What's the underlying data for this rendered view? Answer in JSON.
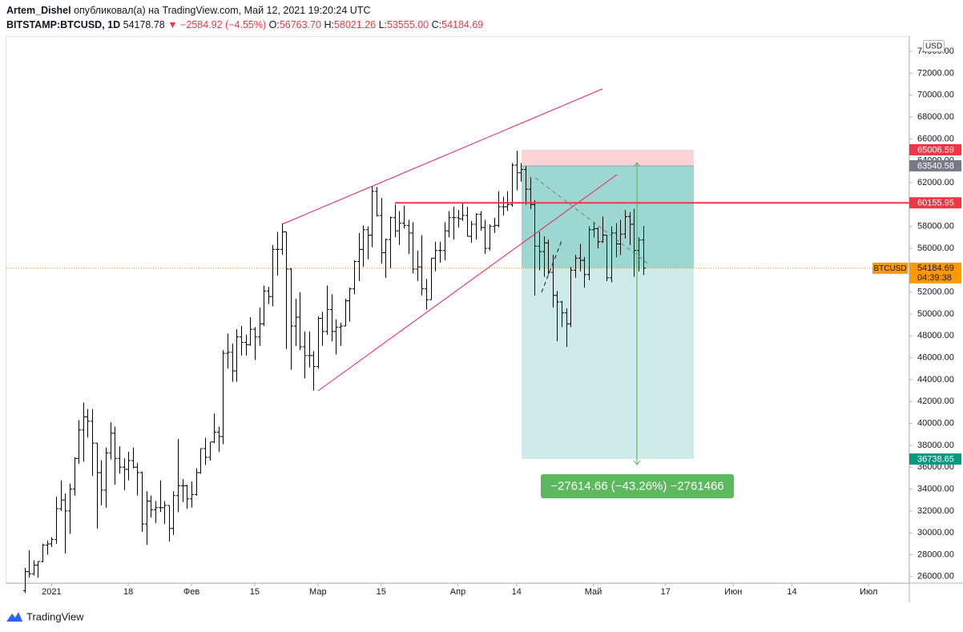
{
  "header": {
    "author": "Artem_Dishel",
    "published": "опубликовал(а) на TradingView.com, Май 12, 2021 19:20:24 UTC",
    "symbol": "BITSTAMP:BTCUSD, 1D",
    "last": "54178.78",
    "change": "▼ −2584.92 (−4.55%)",
    "ohlc": [
      {
        "label": "O:",
        "value": "56763.70"
      },
      {
        "label": "H:",
        "value": "58021.26"
      },
      {
        "label": "L:",
        "value": "53555.00"
      },
      {
        "label": "C:",
        "value": "54184.69"
      }
    ]
  },
  "footer": {
    "brand": "TradingView"
  },
  "chart_data": {
    "type": "ohlc",
    "color": "#000000",
    "grid": false,
    "currency": "USD",
    "x": [
      "2020-12-26",
      "2020-12-27",
      "2020-12-28",
      "2020-12-29",
      "2020-12-30",
      "2020-12-31",
      "2021-01-01",
      "2021-01-02",
      "2021-01-03",
      "2021-01-04",
      "2021-01-05",
      "2021-01-06",
      "2021-01-07",
      "2021-01-08",
      "2021-01-09",
      "2021-01-10",
      "2021-01-11",
      "2021-01-12",
      "2021-01-13",
      "2021-01-14",
      "2021-01-15",
      "2021-01-16",
      "2021-01-17",
      "2021-01-18",
      "2021-01-19",
      "2021-01-20",
      "2021-01-21",
      "2021-01-22",
      "2021-01-23",
      "2021-01-24",
      "2021-01-25",
      "2021-01-26",
      "2021-01-27",
      "2021-01-28",
      "2021-01-29",
      "2021-01-30",
      "2021-01-31",
      "2021-02-01",
      "2021-02-02",
      "2021-02-03",
      "2021-02-04",
      "2021-02-05",
      "2021-02-06",
      "2021-02-07",
      "2021-02-08",
      "2021-02-09",
      "2021-02-10",
      "2021-02-11",
      "2021-02-12",
      "2021-02-13",
      "2021-02-14",
      "2021-02-15",
      "2021-02-16",
      "2021-02-17",
      "2021-02-18",
      "2021-02-19",
      "2021-02-20",
      "2021-02-21",
      "2021-02-22",
      "2021-02-23",
      "2021-02-24",
      "2021-02-25",
      "2021-02-26",
      "2021-02-27",
      "2021-02-28",
      "2021-03-01",
      "2021-03-02",
      "2021-03-03",
      "2021-03-04",
      "2021-03-05",
      "2021-03-06",
      "2021-03-07",
      "2021-03-08",
      "2021-03-09",
      "2021-03-10",
      "2021-03-11",
      "2021-03-12",
      "2021-03-13",
      "2021-03-14",
      "2021-03-15",
      "2021-03-16",
      "2021-03-17",
      "2021-03-18",
      "2021-03-19",
      "2021-03-20",
      "2021-03-21",
      "2021-03-22",
      "2021-03-23",
      "2021-03-24",
      "2021-03-25",
      "2021-03-26",
      "2021-03-27",
      "2021-03-28",
      "2021-03-29",
      "2021-03-30",
      "2021-03-31",
      "2021-04-01",
      "2021-04-02",
      "2021-04-03",
      "2021-04-04",
      "2021-04-05",
      "2021-04-06",
      "2021-04-07",
      "2021-04-08",
      "2021-04-09",
      "2021-04-10",
      "2021-04-11",
      "2021-04-12",
      "2021-04-13",
      "2021-04-14",
      "2021-04-15",
      "2021-04-16",
      "2021-04-17",
      "2021-04-18",
      "2021-04-19",
      "2021-04-20",
      "2021-04-21",
      "2021-04-22",
      "2021-04-23",
      "2021-04-24",
      "2021-04-25",
      "2021-04-26",
      "2021-04-27",
      "2021-04-28",
      "2021-04-29",
      "2021-04-30",
      "2021-05-01",
      "2021-05-02",
      "2021-05-03",
      "2021-05-04",
      "2021-05-05",
      "2021-05-06",
      "2021-05-07",
      "2021-05-08",
      "2021-05-09",
      "2021-05-10",
      "2021-05-11",
      "2021-05-12"
    ],
    "open": [
      24700,
      26450,
      26250,
      27050,
      27380,
      28880,
      28990,
      29400,
      32200,
      33000,
      32000,
      34000,
      36800,
      39400,
      40600,
      40200,
      38200,
      35500,
      33900,
      37300,
      39100,
      36800,
      36000,
      35800,
      36600,
      36000,
      35500,
      30800,
      32900,
      32100,
      32300,
      32300,
      32500,
      30400,
      33400,
      34300,
      34300,
      33100,
      33500,
      35500,
      37700,
      36900,
      38300,
      39200,
      38800,
      46400,
      46500,
      44800,
      47900,
      47400,
      47200,
      48600,
      47900,
      49100,
      52100,
      51600,
      55900,
      55900,
      57500,
      54100,
      48900,
      49700,
      47000,
      46200,
      46200,
      45200,
      49600,
      48400,
      50400,
      48400,
      48800,
      48900,
      51200,
      52300,
      54800,
      55900,
      57700,
      57200,
      61200,
      59000,
      55600,
      56800,
      58800,
      57600,
      58300,
      58100,
      57400,
      54100,
      54300,
      52300,
      51300,
      55100,
      55800,
      55800,
      57600,
      58800,
      58800,
      58700,
      59000,
      57100,
      58200,
      59100,
      57900,
      56000,
      58000,
      58100,
      59800,
      59800,
      60000,
      63600,
      62900,
      63200,
      61400,
      60000,
      56200,
      55700,
      56500,
      53800,
      51700,
      51100,
      50100,
      49100,
      54000,
      55100,
      54900,
      53600,
      57700,
      57800,
      56600,
      57200,
      53300,
      57400,
      56400,
      57300,
      58900,
      58200,
      55800,
      56763.7
    ],
    "high": [
      26800,
      28400,
      27500,
      27400,
      29000,
      29300,
      29600,
      33300,
      34800,
      33600,
      34500,
      36900,
      40300,
      41900,
      41300,
      41300,
      38200,
      36600,
      37800,
      40100,
      39700,
      37900,
      36800,
      37400,
      37800,
      36400,
      35600,
      33800,
      33400,
      32900,
      34800,
      32900,
      32500,
      33800,
      38600,
      34900,
      34400,
      34700,
      35900,
      37700,
      38700,
      38300,
      40900,
      39700,
      46700,
      48200,
      47300,
      48600,
      48900,
      48100,
      49700,
      48800,
      50600,
      52600,
      52500,
      56300,
      57500,
      58300,
      57500,
      54200,
      51400,
      52000,
      48400,
      48400,
      46600,
      49800,
      50200,
      52600,
      51800,
      49500,
      49200,
      51400,
      52400,
      54900,
      57400,
      58100,
      58000,
      61700,
      61600,
      60600,
      56900,
      58900,
      60000,
      59400,
      59900,
      58600,
      58400,
      55800,
      57200,
      53200,
      55100,
      56600,
      56600,
      58400,
      59400,
      59800,
      59500,
      60100,
      59800,
      58500,
      59200,
      59400,
      58600,
      58200,
      58800,
      61200,
      60700,
      61200,
      63800,
      64900,
      63800,
      63500,
      62500,
      60400,
      57500,
      57100,
      56800,
      55400,
      52100,
      51200,
      50500,
      54300,
      55400,
      56400,
      55200,
      58000,
      58400,
      57900,
      58900,
      57200,
      58000,
      58300,
      58600,
      59500,
      59300,
      59600,
      57000,
      58021.26
    ],
    "low": [
      24500,
      25900,
      26100,
      25900,
      27300,
      28000,
      28700,
      29000,
      32000,
      28100,
      29900,
      33400,
      36300,
      36500,
      38700,
      35200,
      30400,
      32500,
      32300,
      36700,
      34400,
      35400,
      33900,
      34800,
      35900,
      33400,
      30100,
      28900,
      31400,
      30900,
      31900,
      30800,
      29200,
      29800,
      31900,
      32800,
      32200,
      32300,
      33400,
      35400,
      36200,
      36600,
      38200,
      37400,
      38100,
      45000,
      43800,
      43800,
      46200,
      46200,
      47100,
      45800,
      47100,
      48900,
      50900,
      50700,
      53500,
      55400,
      46800,
      44900,
      47100,
      46700,
      44100,
      45100,
      43000,
      45000,
      47100,
      48100,
      47500,
      46300,
      47100,
      48900,
      49300,
      51800,
      53000,
      54300,
      55000,
      56100,
      58900,
      54600,
      53300,
      54200,
      57000,
      56300,
      57800,
      55500,
      53700,
      53000,
      51700,
      50400,
      51300,
      53900,
      54700,
      54900,
      57000,
      56800,
      57900,
      58500,
      57100,
      56500,
      56800,
      57600,
      55500,
      55800,
      57400,
      57900,
      59000,
      59400,
      59800,
      61300,
      62100,
      60000,
      59600,
      51700,
      54000,
      53400,
      53600,
      50600,
      47500,
      48800,
      47000,
      48800,
      53300,
      53900,
      52400,
      53100,
      57000,
      56000,
      56500,
      53000,
      52900,
      55200,
      55400,
      56900,
      56300,
      53400,
      53900,
      53555.0
    ],
    "close": [
      26450,
      26250,
      27050,
      27380,
      28880,
      28990,
      29400,
      32200,
      33000,
      32000,
      34000,
      36800,
      39400,
      40600,
      40200,
      38200,
      35500,
      33900,
      37300,
      39100,
      36800,
      36000,
      35800,
      36600,
      36000,
      35500,
      30800,
      32900,
      32100,
      32300,
      32300,
      32500,
      30400,
      33400,
      34300,
      34300,
      33100,
      33500,
      35500,
      37700,
      36900,
      38300,
      39200,
      38800,
      46400,
      46500,
      44800,
      47900,
      47400,
      47200,
      48600,
      47900,
      49100,
      52100,
      51600,
      55900,
      55900,
      57500,
      54100,
      48900,
      49700,
      47000,
      46200,
      46200,
      45200,
      49600,
      48400,
      50400,
      48400,
      48800,
      48900,
      51200,
      52300,
      54800,
      55900,
      57700,
      57200,
      61200,
      59000,
      55600,
      56800,
      58800,
      57600,
      58300,
      58100,
      57400,
      54100,
      54300,
      52300,
      51300,
      55100,
      55800,
      55800,
      57600,
      58800,
      58800,
      58700,
      59000,
      57100,
      58200,
      59100,
      57900,
      56000,
      58000,
      58100,
      59800,
      59800,
      60000,
      63600,
      62900,
      63200,
      61400,
      60000,
      56200,
      55700,
      56500,
      53800,
      51700,
      51100,
      50100,
      49100,
      54000,
      55100,
      54900,
      53600,
      57700,
      57800,
      56600,
      57200,
      53300,
      57400,
      56400,
      57300,
      58900,
      58200,
      55800,
      56763.7,
      54184.69
    ],
    "xlim": [
      "2020-12-22",
      "2021-07-10"
    ],
    "xticks": [
      {
        "value": "2021-01-01",
        "label": "2021"
      },
      {
        "value": "2021-01-18",
        "label": "18"
      },
      {
        "value": "2021-02-01",
        "label": "Фев"
      },
      {
        "value": "2021-02-15",
        "label": "15"
      },
      {
        "value": "2021-03-01",
        "label": "Мар"
      },
      {
        "value": "2021-03-15",
        "label": "15"
      },
      {
        "value": "2021-04-01",
        "label": "Апр"
      },
      {
        "value": "2021-04-14",
        "label": "14"
      },
      {
        "value": "2021-05-01",
        "label": "Май"
      },
      {
        "value": "2021-05-17",
        "label": "17"
      },
      {
        "value": "2021-06-01",
        "label": "Июн"
      },
      {
        "value": "2021-06-14",
        "label": "14"
      },
      {
        "value": "2021-07-01",
        "label": "Июл"
      }
    ],
    "ylim": [
      25400,
      75400
    ],
    "yticks": [
      {
        "value": 26000,
        "label": "26000.00"
      },
      {
        "value": 28000,
        "label": "28000.00"
      },
      {
        "value": 30000,
        "label": "30000.00"
      },
      {
        "value": 32000,
        "label": "32000.00"
      },
      {
        "value": 34000,
        "label": "34000.00"
      },
      {
        "value": 36000,
        "label": "36000.00"
      },
      {
        "value": 38000,
        "label": "38000.00"
      },
      {
        "value": 40000,
        "label": "40000.00"
      },
      {
        "value": 42000,
        "label": "42000.00"
      },
      {
        "value": 44000,
        "label": "44000.00"
      },
      {
        "value": 46000,
        "label": "46000.00"
      },
      {
        "value": 48000,
        "label": "48000.00"
      },
      {
        "value": 50000,
        "label": "50000.00"
      },
      {
        "value": 52000,
        "label": "52000.00"
      },
      {
        "value": 54000,
        "label": "54000.00"
      },
      {
        "value": 56000,
        "label": "56000.00"
      },
      {
        "value": 58000,
        "label": "58000.00"
      },
      {
        "value": 60000,
        "label": "60000.00"
      },
      {
        "value": 62000,
        "label": "62000.00"
      },
      {
        "value": 64000,
        "label": "64000.00"
      },
      {
        "value": 66000,
        "label": "66000.00"
      },
      {
        "value": 68000,
        "label": "68000.00"
      },
      {
        "value": 70000,
        "label": "70000.00"
      },
      {
        "value": 72000,
        "label": "72000.00"
      },
      {
        "value": 74000,
        "label": "74000.00"
      }
    ],
    "price_tags": [
      {
        "value": 65006.59,
        "color": "#f23645"
      },
      {
        "value": 63540.58,
        "color": "#787b86"
      },
      {
        "value": 60155.95,
        "color": "#f23645"
      },
      {
        "value": 36738.65,
        "color": "#089981"
      }
    ],
    "last_tag": {
      "symbol": "BTCUSD",
      "countdown": "04:39:38",
      "color": "#ff9800"
    },
    "measure_label": "−27614.66 (−43.26%) −2761466"
  }
}
